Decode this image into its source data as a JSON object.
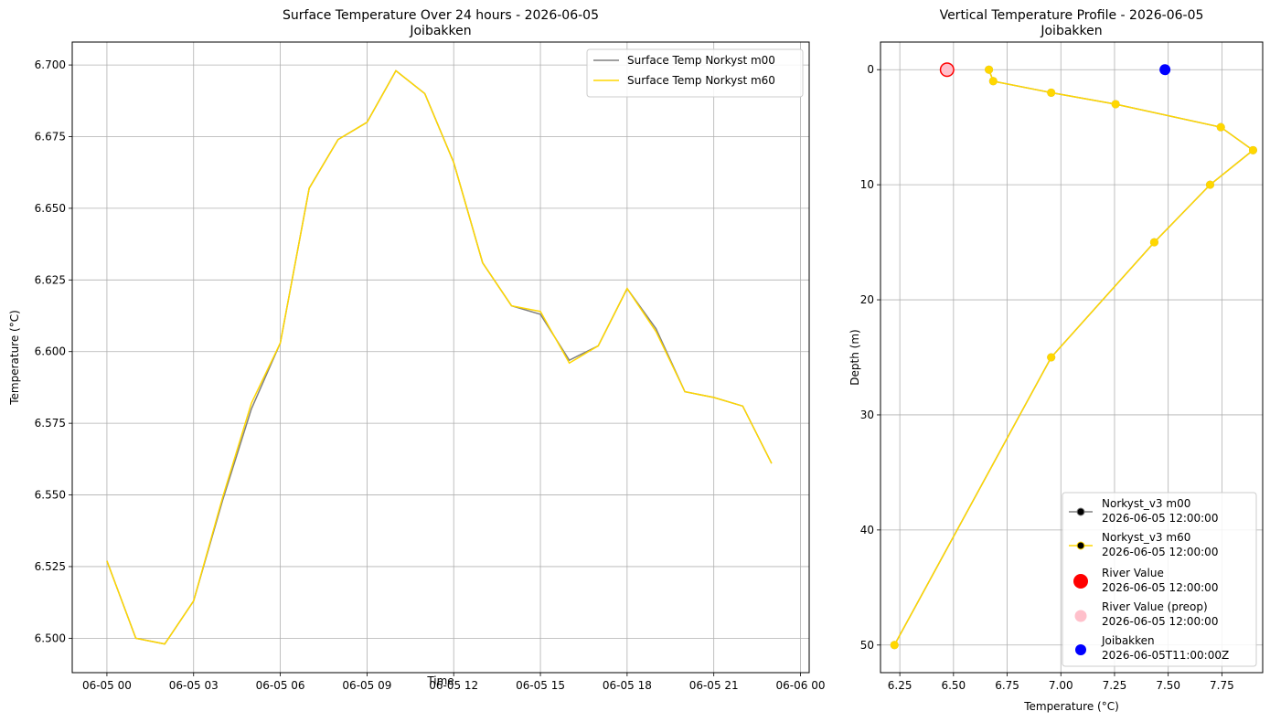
{
  "chart_data": [
    {
      "type": "line",
      "title": "Surface Temperature Over 24 hours - 2026-06-05",
      "subtitle": "Joibakken",
      "xlabel": "Time",
      "ylabel": "Temperature (°C)",
      "x": [
        "06-05 00",
        "06-05 01",
        "06-05 02",
        "06-05 03",
        "06-05 04",
        "06-05 05",
        "06-05 06",
        "06-05 07",
        "06-05 08",
        "06-05 09",
        "06-05 10",
        "06-05 11",
        "06-05 12",
        "06-05 13",
        "06-05 14",
        "06-05 15",
        "06-05 16",
        "06-05 17",
        "06-05 18",
        "06-05 19",
        "06-05 20",
        "06-05 21",
        "06-05 22",
        "06-05 23"
      ],
      "xlim_hours": [
        -1.2,
        24.3
      ],
      "xticks": [
        {
          "hour": 0,
          "label": "06-05 00"
        },
        {
          "hour": 3,
          "label": "06-05 03"
        },
        {
          "hour": 6,
          "label": "06-05 06"
        },
        {
          "hour": 9,
          "label": "06-05 09"
        },
        {
          "hour": 12,
          "label": "06-05 12"
        },
        {
          "hour": 15,
          "label": "06-05 15"
        },
        {
          "hour": 18,
          "label": "06-05 18"
        },
        {
          "hour": 21,
          "label": "06-05 21"
        },
        {
          "hour": 24,
          "label": "06-06 00"
        }
      ],
      "ylim": [
        6.488,
        6.708
      ],
      "yticks": [
        "6.500",
        "6.525",
        "6.550",
        "6.575",
        "6.600",
        "6.625",
        "6.650",
        "6.675",
        "6.700"
      ],
      "grid": true,
      "legend_position": "top-right",
      "series": [
        {
          "name": "Surface Temp Norkyst m00",
          "color": "#808080",
          "values": [
            6.527,
            6.5,
            6.498,
            6.513,
            6.548,
            6.58,
            6.603,
            6.657,
            6.674,
            6.68,
            6.698,
            6.69,
            6.666,
            6.631,
            6.616,
            6.613,
            6.597,
            6.602,
            6.622,
            6.608,
            6.586,
            6.584,
            6.581,
            6.561
          ]
        },
        {
          "name": "Surface Temp Norkyst m60",
          "color": "#ffd700",
          "values": [
            6.527,
            6.5,
            6.498,
            6.513,
            6.549,
            6.582,
            6.603,
            6.657,
            6.674,
            6.68,
            6.698,
            6.69,
            6.666,
            6.631,
            6.616,
            6.614,
            6.596,
            6.602,
            6.622,
            6.607,
            6.586,
            6.584,
            6.581,
            6.561
          ]
        }
      ]
    },
    {
      "type": "line",
      "title": "Vertical Temperature Profile - 2026-06-05",
      "subtitle": "Joibakken",
      "xlabel": "Temperature (°C)",
      "ylabel": "Depth (m)",
      "xlim": [
        6.16,
        7.94
      ],
      "ylim": [
        52.4,
        -2.4
      ],
      "y_inverted": true,
      "xticks": [
        "6.25",
        "6.50",
        "6.75",
        "7.00",
        "7.25",
        "7.50",
        "7.75"
      ],
      "yticks": [
        "0",
        "10",
        "20",
        "30",
        "40",
        "50"
      ],
      "grid": true,
      "legend_position": "bottom-right",
      "series": [
        {
          "name": "Norkyst_v3 m00",
          "time": "2026-06-05 12:00:00",
          "color": "#808080",
          "points": [
            [
              6.665,
              0
            ],
            [
              6.685,
              1
            ],
            [
              6.955,
              2
            ],
            [
              7.255,
              3
            ],
            [
              7.745,
              5
            ],
            [
              7.895,
              7
            ],
            [
              7.695,
              10
            ],
            [
              7.435,
              15
            ],
            [
              6.955,
              25
            ],
            [
              6.225,
              50
            ]
          ]
        },
        {
          "name": "Norkyst_v3 m60",
          "time": "2026-06-05 12:00:00",
          "color": "#ffd700",
          "points": [
            [
              6.665,
              0
            ],
            [
              6.685,
              1
            ],
            [
              6.955,
              2
            ],
            [
              7.255,
              3
            ],
            [
              7.745,
              5
            ],
            [
              7.895,
              7
            ],
            [
              7.695,
              10
            ],
            [
              7.435,
              15
            ],
            [
              6.955,
              25
            ],
            [
              6.225,
              50
            ]
          ]
        }
      ],
      "markers": [
        {
          "name": "River Value",
          "time": "2026-06-05 12:00:00",
          "color": "#ff0000",
          "x": 6.47,
          "y": 0,
          "size": "large"
        },
        {
          "name": "River Value (preop)",
          "time": "2026-06-05 12:00:00",
          "color": "#ffc0cb",
          "x": 6.47,
          "y": 0,
          "size": "medium"
        },
        {
          "name": "Joibakken",
          "time": "2026-06-05T11:00:00Z",
          "color": "#0000ff",
          "x": 7.485,
          "y": 0,
          "size": "small"
        }
      ]
    }
  ]
}
